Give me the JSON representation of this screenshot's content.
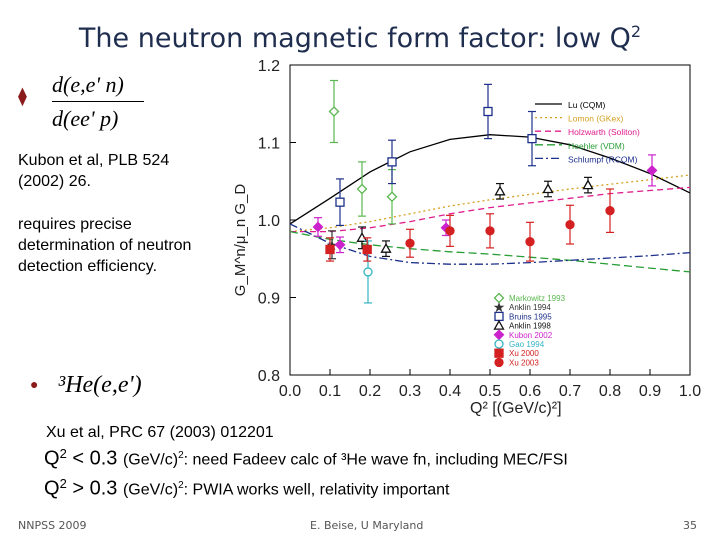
{
  "title": {
    "text": "The neutron magnetic form factor: low Q",
    "sup": "2"
  },
  "left": {
    "ratio_num": "d(e,e' n)",
    "ratio_den": "d(ee' p)",
    "citation1": [
      "Kubon et al, PLB 524",
      "(2002) 26."
    ],
    "note": [
      "requires precise",
      "determination of neutron",
      "detection efficiency."
    ],
    "he_reaction": "³He(e,e')",
    "citation2": "Xu et al, PRC 67 (2003) 012201",
    "line1": {
      "q": "Q",
      "sup": "2",
      "rel": " < 0.3 ",
      "unit": "(GeV/c)",
      "usup": "2",
      "text": ":  need Fadeev calc of ³He wave fn, including MEC/FSI"
    },
    "line2": {
      "q": "Q",
      "sup": "2",
      "rel": " > 0.3 ",
      "unit": "(GeV/c)",
      "usup": "2",
      "text": ":  PWIA works well, relativity important"
    }
  },
  "footer": {
    "left": "NNPSS 2009",
    "center": "E. Beise, U Maryland",
    "right": "35"
  },
  "chart_data": {
    "type": "scatter",
    "xlim": [
      0.0,
      1.0
    ],
    "ylim": [
      0.8,
      1.2
    ],
    "x_ticks": [
      "0.0",
      "0.1",
      "0.2",
      "0.3",
      "0.4",
      "0.5",
      "0.6",
      "0.7",
      "0.8",
      "0.9",
      "1.0"
    ],
    "y_ticks": [
      "0.8",
      "0.9",
      "1.0",
      "1.1",
      "1.2"
    ],
    "xlabel": "Q² [(GeV/c)²]",
    "ylabel": "G_M^n/μ_n G_D",
    "curves": [
      {
        "name": "Lu (CQM)",
        "color": "#000000",
        "dash": "",
        "x": [
          0.0,
          0.1,
          0.2,
          0.3,
          0.4,
          0.5,
          0.6,
          0.7,
          0.8,
          0.9,
          1.0
        ],
        "y": [
          0.995,
          1.028,
          1.062,
          1.088,
          1.104,
          1.11,
          1.107,
          1.097,
          1.08,
          1.06,
          1.035
        ]
      },
      {
        "name": "Lomon (GKex)",
        "color": "#d4a020",
        "dash": "2,3",
        "x": [
          0.0,
          0.1,
          0.2,
          0.3,
          0.4,
          0.5,
          0.6,
          0.7,
          0.8,
          0.9,
          1.0
        ],
        "y": [
          0.985,
          0.99,
          0.998,
          1.008,
          1.018,
          1.026,
          1.033,
          1.04,
          1.046,
          1.052,
          1.058
        ]
      },
      {
        "name": "Holzwarth (Soliton)",
        "color": "#e01d8c",
        "dash": "6,4",
        "x": [
          0.0,
          0.1,
          0.2,
          0.3,
          0.4,
          0.5,
          0.6,
          0.7,
          0.8,
          0.9,
          1.0
        ],
        "y": [
          0.985,
          0.985,
          0.99,
          0.998,
          1.008,
          1.016,
          1.022,
          1.028,
          1.034,
          1.038,
          1.042
        ]
      },
      {
        "name": "Hoehler (VDM)",
        "color": "#2a9e36",
        "dash": "8,4",
        "x": [
          0.0,
          0.1,
          0.2,
          0.3,
          0.4,
          0.5,
          0.6,
          0.7,
          0.8,
          0.9,
          1.0
        ],
        "y": [
          0.985,
          0.975,
          0.968,
          0.963,
          0.959,
          0.956,
          0.952,
          0.948,
          0.943,
          0.938,
          0.933
        ]
      },
      {
        "name": "Schlumpf (RCQM)",
        "color": "#1c2f8a",
        "dash": "8,3,2,3",
        "x": [
          0.0,
          0.1,
          0.2,
          0.3,
          0.4,
          0.5,
          0.6,
          0.7,
          0.8,
          0.9,
          1.0
        ],
        "y": [
          0.995,
          0.97,
          0.953,
          0.945,
          0.943,
          0.943,
          0.945,
          0.948,
          0.951,
          0.954,
          0.958
        ]
      }
    ],
    "series": [
      {
        "name": "Markowitz 1993",
        "color": "#5ab74f",
        "marker": "diamond-open",
        "points": [
          {
            "x": 0.11,
            "y": 1.14,
            "e": 0.04
          },
          {
            "x": 0.18,
            "y": 1.04,
            "e": 0.035
          },
          {
            "x": 0.255,
            "y": 1.03,
            "e": 0.035
          }
        ]
      },
      {
        "name": "Anklin 1994",
        "color": "#333333",
        "marker": "star",
        "points": [
          {
            "x": 0.105,
            "y": 0.968,
            "e": 0.018
          }
        ]
      },
      {
        "name": "Bruins 1995",
        "color": "#1c2f8a",
        "marker": "square-open",
        "points": [
          {
            "x": 0.125,
            "y": 1.023,
            "e": 0.03
          },
          {
            "x": 0.255,
            "y": 1.075,
            "e": 0.028
          },
          {
            "x": 0.495,
            "y": 1.14,
            "e": 0.035
          },
          {
            "x": 0.605,
            "y": 1.105,
            "e": 0.035
          }
        ]
      },
      {
        "name": "Anklin 1998",
        "color": "#111111",
        "marker": "triangle-open",
        "points": [
          {
            "x": 0.18,
            "y": 0.977,
            "e": 0.014
          },
          {
            "x": 0.24,
            "y": 0.963,
            "e": 0.01
          },
          {
            "x": 0.525,
            "y": 1.037,
            "e": 0.01
          },
          {
            "x": 0.645,
            "y": 1.04,
            "e": 0.01
          },
          {
            "x": 0.745,
            "y": 1.045,
            "e": 0.01
          }
        ]
      },
      {
        "name": "Kubon 2002",
        "color": "#cc22cc",
        "marker": "diamond",
        "points": [
          {
            "x": 0.07,
            "y": 0.991,
            "e": 0.012
          },
          {
            "x": 0.125,
            "y": 0.968,
            "e": 0.01
          },
          {
            "x": 0.39,
            "y": 0.99,
            "e": 0.01
          },
          {
            "x": 0.905,
            "y": 1.064,
            "e": 0.02
          }
        ]
      },
      {
        "name": "Gao 1994",
        "color": "#35b4c4",
        "marker": "circle-open",
        "points": [
          {
            "x": 0.195,
            "y": 0.933,
            "e": 0.04
          }
        ]
      },
      {
        "name": "Xu 2000",
        "color": "#d42020",
        "marker": "square",
        "points": [
          {
            "x": 0.1,
            "y": 0.962,
            "e": 0.015
          },
          {
            "x": 0.193,
            "y": 0.962,
            "e": 0.015
          }
        ]
      },
      {
        "name": "Xu 2003",
        "color": "#d42020",
        "marker": "circle",
        "points": [
          {
            "x": 0.3,
            "y": 0.97,
            "e": 0.018
          },
          {
            "x": 0.4,
            "y": 0.986,
            "e": 0.02
          },
          {
            "x": 0.5,
            "y": 0.986,
            "e": 0.022
          },
          {
            "x": 0.6,
            "y": 0.972,
            "e": 0.025
          },
          {
            "x": 0.7,
            "y": 0.994,
            "e": 0.025
          },
          {
            "x": 0.8,
            "y": 1.012,
            "e": 0.028
          }
        ]
      }
    ],
    "legend_position": "lower-right"
  }
}
